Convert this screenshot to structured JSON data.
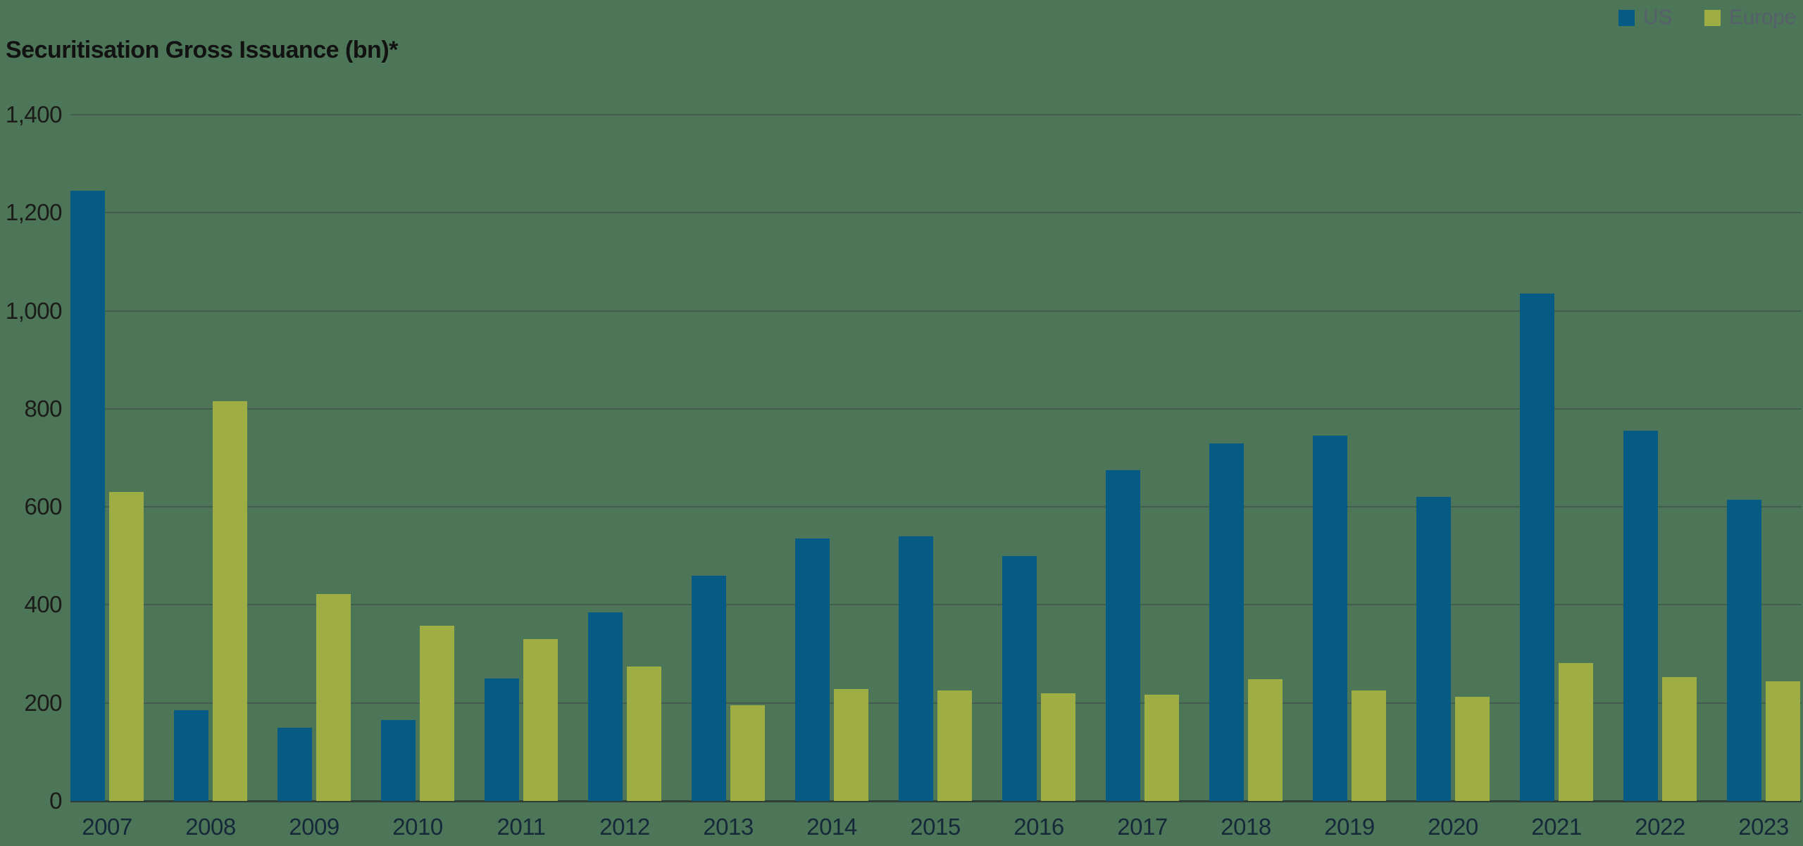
{
  "title": "Securitisation Gross Issuance (bn)*",
  "colors": {
    "background": "#4d7557",
    "us_bar": "#075a84",
    "europe_bar": "#9fad45",
    "gridline": "#3e484e",
    "legend_text": "#55606b"
  },
  "chart_data": {
    "type": "bar",
    "title": "Securitisation Gross Issuance (bn)*",
    "categories": [
      "2007",
      "2008",
      "2009",
      "2010",
      "2011",
      "2012",
      "2013",
      "2014",
      "2015",
      "2016",
      "2017",
      "2018",
      "2019",
      "2020",
      "2021",
      "2022",
      "2023"
    ],
    "series": [
      {
        "name": "US",
        "color": "#075a84",
        "values": [
          1245,
          185,
          150,
          165,
          250,
          385,
          460,
          535,
          540,
          500,
          675,
          730,
          745,
          620,
          1035,
          755,
          615
        ]
      },
      {
        "name": "Europe",
        "color": "#9fad45",
        "values": [
          630,
          815,
          422,
          357,
          330,
          274,
          195,
          228,
          226,
          219,
          217,
          248,
          226,
          212,
          282,
          252,
          244
        ]
      }
    ],
    "xlabel": "",
    "ylabel": "",
    "ylim": [
      0,
      1400
    ],
    "yticks": [
      0,
      200,
      400,
      600,
      800,
      1000,
      1200,
      1400
    ],
    "ytick_labels": [
      "0",
      "200",
      "400",
      "600",
      "800",
      "1,000",
      "1,200",
      "1,400"
    ],
    "grid": true,
    "legend_position": "top-right"
  }
}
